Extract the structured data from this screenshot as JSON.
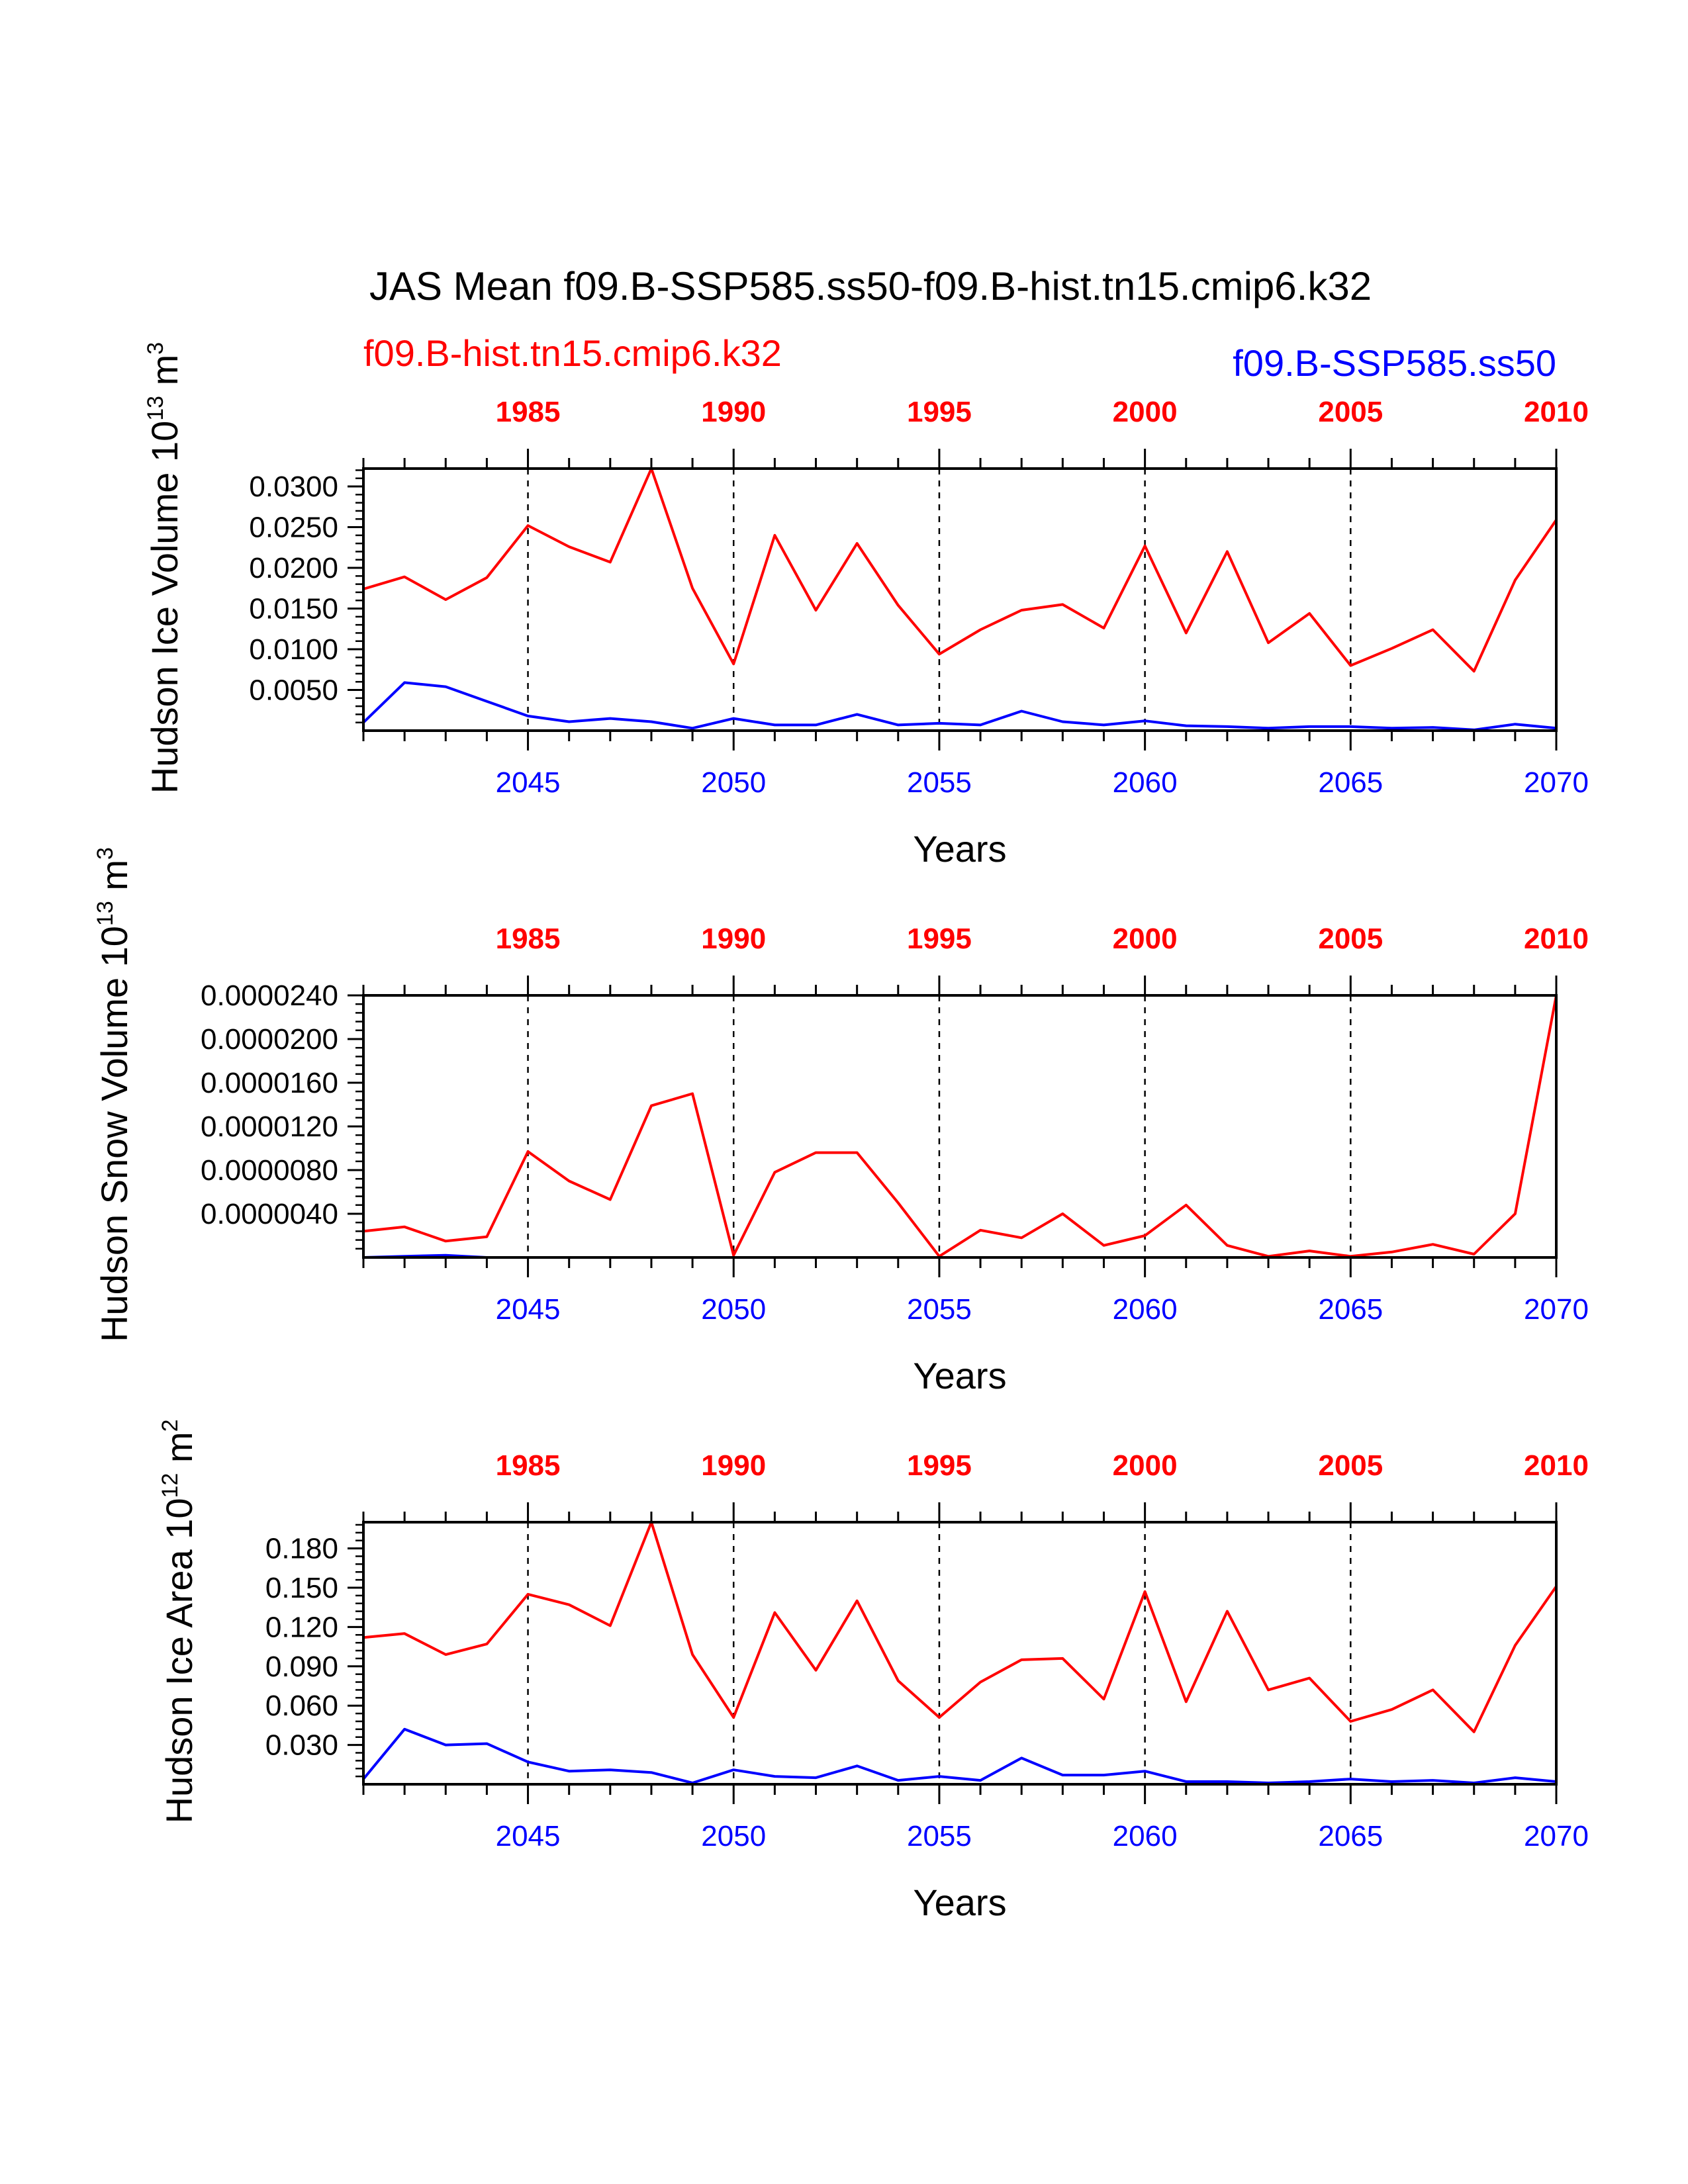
{
  "title": "JAS Mean f09.B-SSP585.ss50-f09.B-hist.tn15.cmip6.k32",
  "legend": {
    "red": "f09.B-hist.tn15.cmip6.k32",
    "blue": "f09.B-SSP585.ss50"
  },
  "colors": {
    "red": "#ff0000",
    "blue": "#0000ff",
    "axis": "#000000"
  },
  "chart_data": [
    {
      "type": "line",
      "ylabel_main": "Hudson Ice Volume 10",
      "ylabel_exp": "13",
      "ylabel_unit": " m",
      "ylabel_unit_exp": "3",
      "xlabel": "Years",
      "x_bottom": {
        "range": [
          2041,
          2070
        ],
        "ticks": [
          "2045",
          "2050",
          "2055",
          "2060",
          "2065",
          "2070"
        ]
      },
      "x_top": {
        "range": [
          1981,
          2010
        ],
        "ticks": [
          "1985",
          "1990",
          "1995",
          "2000",
          "2005",
          "2010"
        ]
      },
      "yticks": [
        "0.0050",
        "0.0100",
        "0.0150",
        "0.0200",
        "0.0250",
        "0.0300"
      ],
      "ylim": [
        0.0,
        0.0322
      ],
      "yminor": 0.001,
      "series": [
        {
          "color": "red",
          "x": [
            1981,
            1982,
            1983,
            1984,
            1985,
            1986,
            1987,
            1988,
            1989,
            1990,
            1991,
            1992,
            1993,
            1994,
            1995,
            1996,
            1997,
            1998,
            1999,
            2000,
            2001,
            2002,
            2003,
            2004,
            2005,
            2006,
            2007,
            2008,
            2009,
            2010
          ],
          "values": [
            0.0174,
            0.0189,
            0.0161,
            0.0188,
            0.0252,
            0.0226,
            0.0207,
            0.0322,
            0.0175,
            0.0082,
            0.024,
            0.0148,
            0.023,
            0.0154,
            0.0094,
            0.0124,
            0.0148,
            0.0155,
            0.0126,
            0.0227,
            0.012,
            0.022,
            0.0108,
            0.0144,
            0.008,
            0.0101,
            0.0124,
            0.0073,
            0.0185,
            0.0259
          ]
        },
        {
          "color": "blue",
          "x": [
            2041,
            2042,
            2043,
            2044,
            2045,
            2046,
            2047,
            2048,
            2049,
            2050,
            2051,
            2052,
            2053,
            2054,
            2055,
            2056,
            2057,
            2058,
            2059,
            2060,
            2061,
            2062,
            2063,
            2064,
            2065,
            2066,
            2067,
            2068,
            2069,
            2070
          ],
          "values": [
            0.001,
            0.0059,
            0.0054,
            0.0036,
            0.0018,
            0.0011,
            0.0015,
            0.0011,
            0.0003,
            0.0015,
            0.0007,
            0.0007,
            0.002,
            0.0007,
            0.0009,
            0.0007,
            0.0024,
            0.0011,
            0.0007,
            0.0012,
            0.0006,
            0.0005,
            0.0003,
            0.0005,
            0.0005,
            0.0003,
            0.0004,
            0.0001,
            0.0008,
            0.0003
          ]
        }
      ]
    },
    {
      "type": "line",
      "ylabel_main": "Hudson Snow Volume 10",
      "ylabel_exp": "13",
      "ylabel_unit": " m",
      "ylabel_unit_exp": "3",
      "xlabel": "Years",
      "x_bottom": {
        "range": [
          2041,
          2070
        ],
        "ticks": [
          "2045",
          "2050",
          "2055",
          "2060",
          "2065",
          "2070"
        ]
      },
      "x_top": {
        "range": [
          1981,
          2010
        ],
        "ticks": [
          "1985",
          "1990",
          "1995",
          "2000",
          "2005",
          "2010"
        ]
      },
      "yticks": [
        "0.0000040",
        "0.0000080",
        "0.0000120",
        "0.0000160",
        "0.0000200",
        "0.0000240"
      ],
      "ylim": [
        0.0,
        2.4e-05
      ],
      "yminor": 8e-07,
      "series": [
        {
          "color": "red",
          "x": [
            1981,
            1982,
            1983,
            1984,
            1985,
            1986,
            1987,
            1988,
            1989,
            1990,
            1991,
            1992,
            1993,
            1994,
            1995,
            1996,
            1997,
            1998,
            1999,
            2000,
            2001,
            2002,
            2003,
            2004,
            2005,
            2006,
            2007,
            2008,
            2009,
            2010
          ],
          "values": [
            2.4e-06,
            2.8e-06,
            1.5e-06,
            1.9e-06,
            9.7e-06,
            7e-06,
            5.3e-06,
            1.39e-05,
            1.5e-05,
            2e-07,
            7.8e-06,
            9.6e-06,
            9.6e-06,
            5e-06,
            1e-07,
            2.5e-06,
            1.8e-06,
            4e-06,
            1.1e-06,
            2e-06,
            4.8e-06,
            1.1e-06,
            1e-07,
            6e-07,
            1e-07,
            5e-07,
            1.2e-06,
            3e-07,
            4e-06,
            2.4e-05
          ]
        },
        {
          "color": "blue",
          "x": [
            2041,
            2042,
            2043,
            2044,
            2045,
            2046,
            2047,
            2048,
            2049,
            2050,
            2051,
            2052,
            2053,
            2054,
            2055,
            2056,
            2057,
            2058,
            2059,
            2060,
            2061,
            2062,
            2063,
            2064,
            2065,
            2066,
            2067,
            2068,
            2069,
            2070
          ],
          "values": [
            0.0,
            1e-07,
            2e-07,
            0.0,
            0.0,
            0.0,
            0.0,
            0.0,
            0.0,
            0.0,
            0.0,
            0.0,
            0.0,
            0.0,
            0.0,
            0.0,
            0.0,
            0.0,
            0.0,
            0.0,
            0.0,
            0.0,
            0.0,
            0.0,
            0.0,
            0.0,
            0.0,
            0.0,
            0.0,
            0.0
          ]
        }
      ]
    },
    {
      "type": "line",
      "ylabel_main": "Hudson Ice Area 10",
      "ylabel_exp": "12",
      "ylabel_unit": " m",
      "ylabel_unit_exp": "2",
      "xlabel": "Years",
      "x_bottom": {
        "range": [
          2041,
          2070
        ],
        "ticks": [
          "2045",
          "2050",
          "2055",
          "2060",
          "2065",
          "2070"
        ]
      },
      "x_top": {
        "range": [
          1981,
          2010
        ],
        "ticks": [
          "1985",
          "1990",
          "1995",
          "2000",
          "2005",
          "2010"
        ]
      },
      "yticks": [
        "0.030",
        "0.060",
        "0.090",
        "0.120",
        "0.150",
        "0.180"
      ],
      "ylim": [
        0.0,
        0.2
      ],
      "yminor": 0.006,
      "series": [
        {
          "color": "red",
          "x": [
            1981,
            1982,
            1983,
            1984,
            1985,
            1986,
            1987,
            1988,
            1989,
            1990,
            1991,
            1992,
            1993,
            1994,
            1995,
            1996,
            1997,
            1998,
            1999,
            2000,
            2001,
            2002,
            2003,
            2004,
            2005,
            2006,
            2007,
            2008,
            2009,
            2010
          ],
          "values": [
            0.112,
            0.115,
            0.099,
            0.107,
            0.145,
            0.137,
            0.121,
            0.2,
            0.099,
            0.051,
            0.131,
            0.087,
            0.14,
            0.079,
            0.051,
            0.078,
            0.095,
            0.096,
            0.065,
            0.147,
            0.063,
            0.132,
            0.072,
            0.081,
            0.048,
            0.057,
            0.072,
            0.04,
            0.106,
            0.151
          ]
        },
        {
          "color": "blue",
          "x": [
            2041,
            2042,
            2043,
            2044,
            2045,
            2046,
            2047,
            2048,
            2049,
            2050,
            2051,
            2052,
            2053,
            2054,
            2055,
            2056,
            2057,
            2058,
            2059,
            2060,
            2061,
            2062,
            2063,
            2064,
            2065,
            2066,
            2067,
            2068,
            2069,
            2070
          ],
          "values": [
            0.004,
            0.042,
            0.03,
            0.031,
            0.017,
            0.01,
            0.011,
            0.009,
            0.001,
            0.011,
            0.006,
            0.005,
            0.014,
            0.003,
            0.006,
            0.003,
            0.02,
            0.007,
            0.007,
            0.01,
            0.002,
            0.002,
            0.001,
            0.002,
            0.004,
            0.002,
            0.003,
            0.001,
            0.005,
            0.002
          ]
        }
      ]
    }
  ]
}
